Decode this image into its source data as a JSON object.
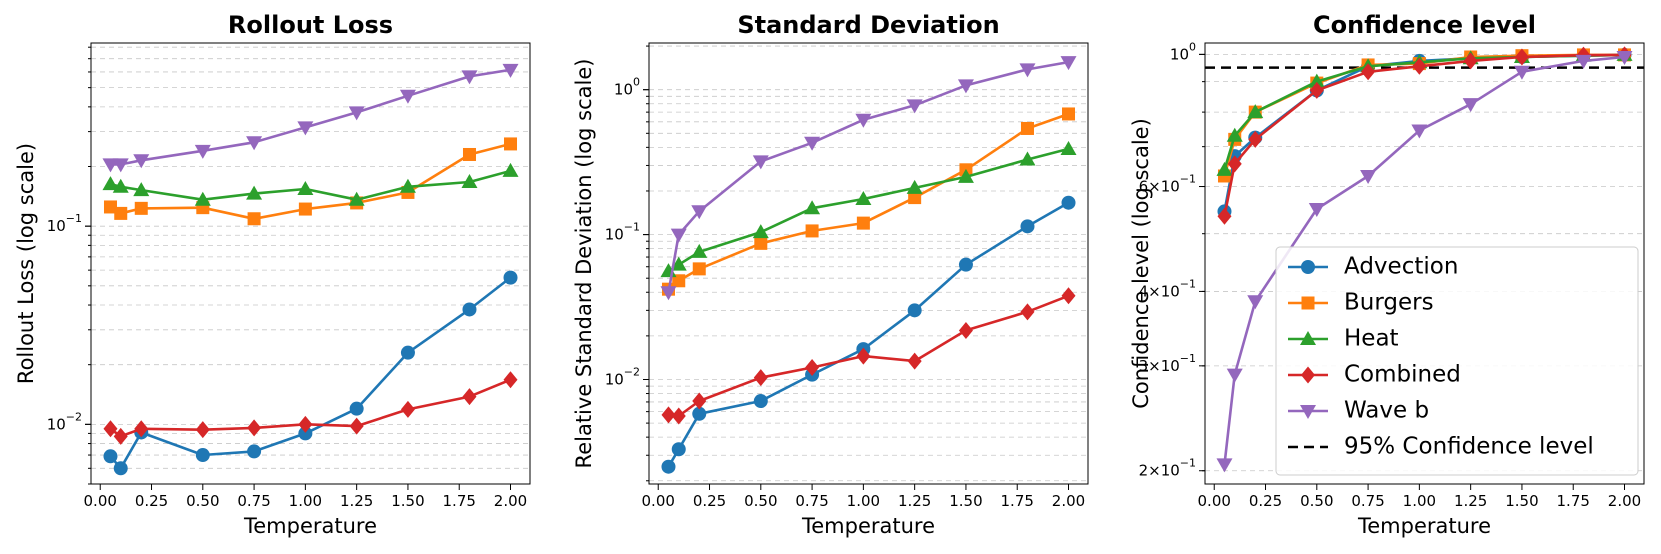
{
  "chart_data": [
    {
      "type": "line",
      "title": "Rollout Loss",
      "xlabel": "Temperature",
      "ylabel": "Rollout Loss (log scale)",
      "yscale": "log",
      "xlim": [
        -0.045,
        2.095
      ],
      "ylim": [
        0.005,
        0.84
      ],
      "xticks": [
        0.0,
        0.25,
        0.5,
        0.75,
        1.0,
        1.25,
        1.5,
        1.75,
        2.0
      ],
      "xtick_labels": [
        "0.00",
        "0.25",
        "0.50",
        "0.75",
        "1.00",
        "1.25",
        "1.50",
        "1.75",
        "2.00"
      ],
      "yticks": [
        0.01,
        0.1
      ],
      "ytick_labels": [
        "10^-2",
        "10^-1"
      ],
      "minor_grid": true,
      "x": [
        0.05,
        0.1,
        0.2,
        0.5,
        0.75,
        1.0,
        1.25,
        1.5,
        1.8,
        2.0
      ],
      "series": [
        {
          "name": "Advection",
          "values": [
            0.0069,
            0.006,
            0.0091,
            0.007,
            0.0073,
            0.009,
            0.012,
            0.023,
            0.038,
            0.055
          ]
        },
        {
          "name": "Burgers",
          "values": [
            0.125,
            0.116,
            0.123,
            0.124,
            0.109,
            0.122,
            0.131,
            0.148,
            0.23,
            0.26
          ]
        },
        {
          "name": "Heat",
          "values": [
            0.163,
            0.158,
            0.152,
            0.136,
            0.146,
            0.154,
            0.136,
            0.158,
            0.167,
            0.19
          ]
        },
        {
          "name": "Combined",
          "values": [
            0.0095,
            0.0087,
            0.0095,
            0.0094,
            0.0096,
            0.01,
            0.0098,
            0.0119,
            0.0138,
            0.0168
          ]
        },
        {
          "name": "Wave b",
          "values": [
            0.205,
            0.205,
            0.215,
            0.24,
            0.265,
            0.315,
            0.375,
            0.455,
            0.57,
            0.615
          ]
        }
      ]
    },
    {
      "type": "line",
      "title": "Standard Deviation",
      "xlabel": "Temperature",
      "ylabel": "Relative Standard Deviation (log scale)",
      "yscale": "log",
      "xlim": [
        -0.045,
        2.095
      ],
      "ylim": [
        0.0019,
        2.1
      ],
      "xticks": [
        0.0,
        0.25,
        0.5,
        0.75,
        1.0,
        1.25,
        1.5,
        1.75,
        2.0
      ],
      "xtick_labels": [
        "0.00",
        "0.25",
        "0.50",
        "0.75",
        "1.00",
        "1.25",
        "1.50",
        "1.75",
        "2.00"
      ],
      "yticks": [
        0.01,
        0.1,
        1.0
      ],
      "ytick_labels": [
        "10^-2",
        "10^-1",
        "10^0"
      ],
      "minor_grid": true,
      "x": [
        0.05,
        0.1,
        0.2,
        0.5,
        0.75,
        1.0,
        1.25,
        1.5,
        1.8,
        2.0
      ],
      "series": [
        {
          "name": "Advection",
          "values": [
            0.0025,
            0.0033,
            0.0058,
            0.0071,
            0.0108,
            0.0162,
            0.03,
            0.062,
            0.114,
            0.166
          ]
        },
        {
          "name": "Burgers",
          "values": [
            0.042,
            0.048,
            0.058,
            0.087,
            0.106,
            0.12,
            0.18,
            0.28,
            0.54,
            0.68
          ]
        },
        {
          "name": "Heat",
          "values": [
            0.056,
            0.062,
            0.076,
            0.104,
            0.152,
            0.176,
            0.21,
            0.25,
            0.33,
            0.39
          ]
        },
        {
          "name": "Combined",
          "values": [
            0.0057,
            0.0056,
            0.0071,
            0.0103,
            0.0121,
            0.0145,
            0.0134,
            0.0218,
            0.0293,
            0.0378
          ]
        },
        {
          "name": "Wave b",
          "values": [
            0.04,
            0.1,
            0.145,
            0.32,
            0.43,
            0.62,
            0.78,
            1.07,
            1.38,
            1.55
          ]
        }
      ]
    },
    {
      "type": "line",
      "title": "Confidence level",
      "xlabel": "Temperature",
      "ylabel": "Confidence level (log scale)",
      "yscale": "log",
      "xlim": [
        -0.045,
        2.095
      ],
      "ylim": [
        0.19,
        1.045
      ],
      "xticks": [
        0.0,
        0.25,
        0.5,
        0.75,
        1.0,
        1.25,
        1.5,
        1.75,
        2.0
      ],
      "xtick_labels": [
        "0.00",
        "0.25",
        "0.50",
        "0.75",
        "1.00",
        "1.25",
        "1.50",
        "1.75",
        "2.00"
      ],
      "yticks": [
        0.2,
        0.3,
        0.4,
        0.6,
        1.0
      ],
      "ytick_labels": [
        "2×10^-1",
        "3×10^-1",
        "4×10^-1",
        "6×10^-1",
        "10^0"
      ],
      "minor_grid": true,
      "reference_line": {
        "name": "95% Confidence level",
        "value": 0.95
      },
      "legend_position": "lower-right",
      "x": [
        0.05,
        0.1,
        0.2,
        0.5,
        0.75,
        1.0,
        1.25,
        1.5,
        1.8,
        2.0
      ],
      "series": [
        {
          "name": "Advection",
          "values": [
            0.545,
            0.675,
            0.725,
            0.87,
            0.955,
            0.975,
            0.985,
            0.99,
            0.995,
            0.998
          ]
        },
        {
          "name": "Burgers",
          "values": [
            0.625,
            0.72,
            0.8,
            0.895,
            0.96,
            0.965,
            0.99,
            0.995,
            0.998,
            0.998
          ]
        },
        {
          "name": "Heat",
          "values": [
            0.64,
            0.73,
            0.8,
            0.9,
            0.955,
            0.97,
            0.985,
            0.99,
            0.995,
            0.998
          ]
        },
        {
          "name": "Combined",
          "values": [
            0.535,
            0.655,
            0.72,
            0.87,
            0.935,
            0.955,
            0.975,
            0.99,
            0.997,
            0.998
          ]
        },
        {
          "name": "Wave b",
          "values": [
            0.205,
            0.29,
            0.385,
            0.55,
            0.625,
            0.745,
            0.825,
            0.935,
            0.975,
            0.99
          ]
        }
      ]
    }
  ],
  "legend": [
    {
      "name": "Advection",
      "color": "#1f77b4",
      "marker": "circle"
    },
    {
      "name": "Burgers",
      "color": "#ff7f0e",
      "marker": "square"
    },
    {
      "name": "Heat",
      "color": "#2ca02c",
      "marker": "triangle-up"
    },
    {
      "name": "Combined",
      "color": "#d62728",
      "marker": "diamond"
    },
    {
      "name": "Wave b",
      "color": "#9467bd",
      "marker": "triangle-down"
    },
    {
      "name": "95% Confidence level",
      "color": "#000000",
      "marker": "dashed-line"
    }
  ],
  "colors": {
    "Advection": "#1f77b4",
    "Burgers": "#ff7f0e",
    "Heat": "#2ca02c",
    "Combined": "#d62728",
    "Wave b": "#9467bd",
    "grid": "#b0b0b0"
  }
}
